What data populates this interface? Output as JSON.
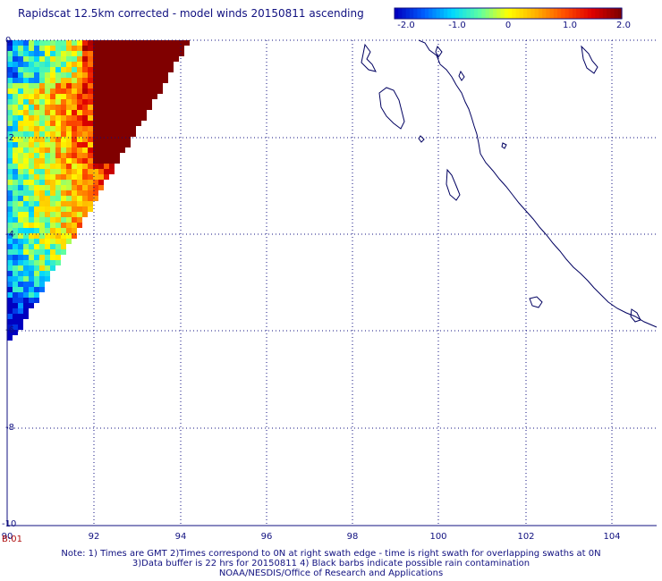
{
  "title": "Rapidscat 12.5km corrected - model winds 20150811 ascending",
  "colorbar": {
    "ticks": [
      "-2.0",
      "-1.0",
      "0",
      "1.0",
      "2.0"
    ],
    "colors": [
      "#0000c0",
      "#0060ff",
      "#00d8ff",
      "#60ffa0",
      "#ffff00",
      "#ffb000",
      "#ff5000",
      "#e00000",
      "#800000"
    ]
  },
  "axes": {
    "x_ticks": [
      "90",
      "92",
      "94",
      "96",
      "98",
      "100",
      "102",
      "104"
    ],
    "y_ticks": [
      "0",
      "-2",
      "-4",
      "-6",
      "-8",
      "-10"
    ]
  },
  "time_label": "B:01",
  "notes": {
    "line1": "Note: 1) Times are GMT 2)Times correspond to 0N at right swath edge - time is right swath for overlapping swaths at 0N",
    "line2": "3)Data buffer is 22 hrs for 20150811 4) Black barbs indicate possible rain contamination",
    "line3": "NOAA/NESDIS/Office of Research and Applications"
  },
  "map_data": {
    "lon_range": [
      90,
      105
    ],
    "lat_range": [
      -10,
      0
    ],
    "grid": "dotted",
    "coastline_color": "#000060",
    "swath_color_scale": "wind difference (m/s)"
  }
}
